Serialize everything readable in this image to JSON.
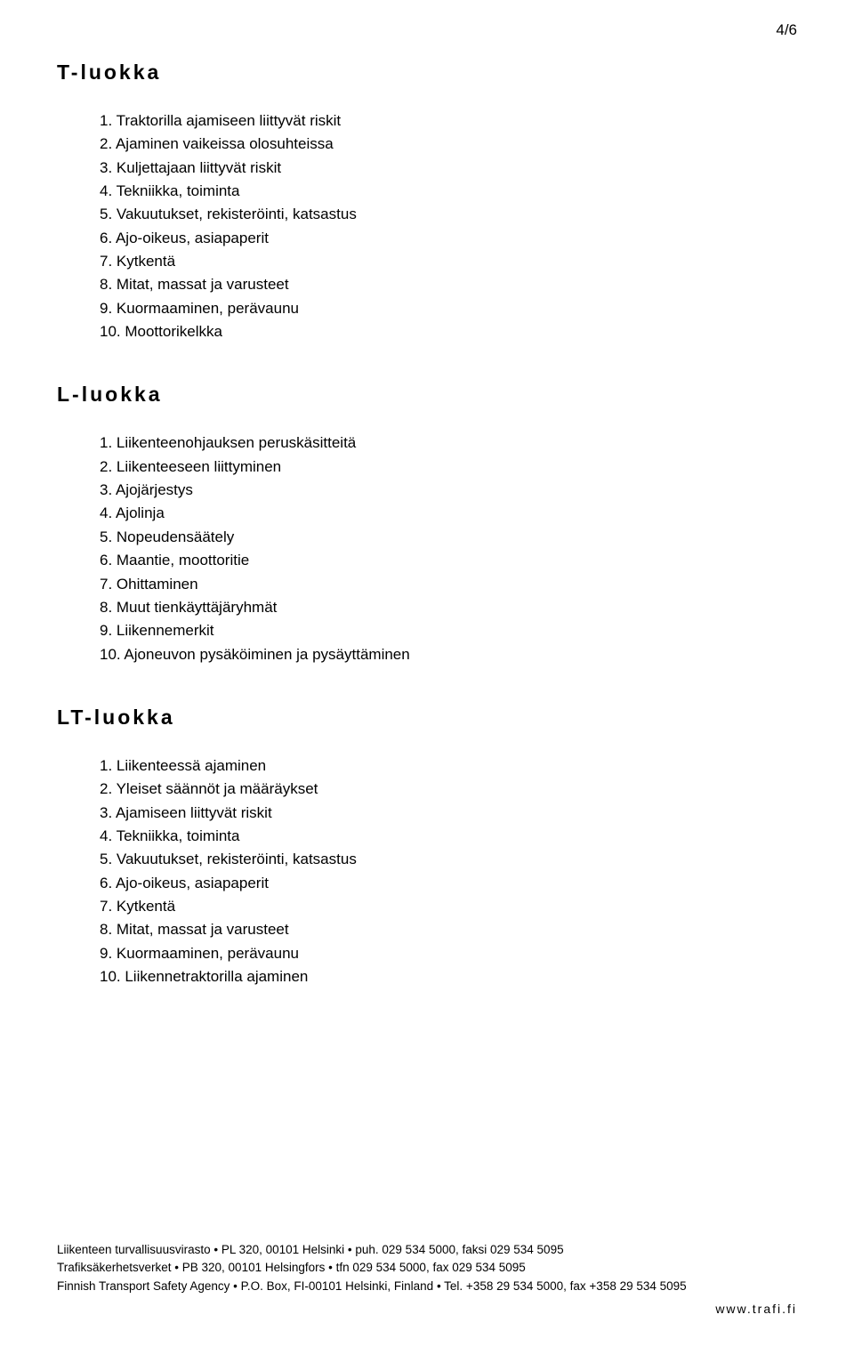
{
  "page_number": "4/6",
  "sections": [
    {
      "heading": "T-luokka",
      "items": [
        "1. Traktorilla ajamiseen liittyvät riskit",
        "2. Ajaminen vaikeissa olosuhteissa",
        "3. Kuljettajaan liittyvät riskit",
        "4. Tekniikka, toiminta",
        "5. Vakuutukset, rekisteröinti, katsastus",
        "6. Ajo-oikeus, asiapaperit",
        "7. Kytkentä",
        "8. Mitat, massat ja varusteet",
        "9. Kuormaaminen, perävaunu",
        "10. Moottorikelkka"
      ]
    },
    {
      "heading": "L-luokka",
      "items": [
        "1. Liikenteenohjauksen peruskäsitteitä",
        "2. Liikenteeseen liittyminen",
        "3. Ajojärjestys",
        "4. Ajolinja",
        "5. Nopeudensäätely",
        "6. Maantie, moottoritie",
        "7. Ohittaminen",
        "8. Muut tienkäyttäjäryhmät",
        "9. Liikennemerkit",
        "10. Ajoneuvon pysäköiminen ja pysäyttäminen"
      ]
    },
    {
      "heading": "LT-luokka",
      "items": [
        "1. Liikenteessä ajaminen",
        "2. Yleiset säännöt ja määräykset",
        "3. Ajamiseen liittyvät riskit",
        "4. Tekniikka, toiminta",
        "5. Vakuutukset, rekisteröinti, katsastus",
        "6. Ajo-oikeus, asiapaperit",
        "7. Kytkentä",
        "8. Mitat, massat ja varusteet",
        "9. Kuormaaminen, perävaunu",
        "10. Liikennetraktorilla ajaminen"
      ]
    }
  ],
  "footer": {
    "line1": "Liikenteen turvallisuusvirasto • PL 320, 00101 Helsinki • puh. 029 534 5000, faksi 029 534 5095",
    "line2": "Trafiksäkerhetsverket • PB 320, 00101 Helsingfors • tfn 029 534 5000, fax 029 534 5095",
    "line3": "Finnish Transport Safety Agency • P.O. Box, FI-00101 Helsinki, Finland • Tel. +358 29 534 5000, fax +358 29 534 5095",
    "site": "www.trafi.fi"
  }
}
